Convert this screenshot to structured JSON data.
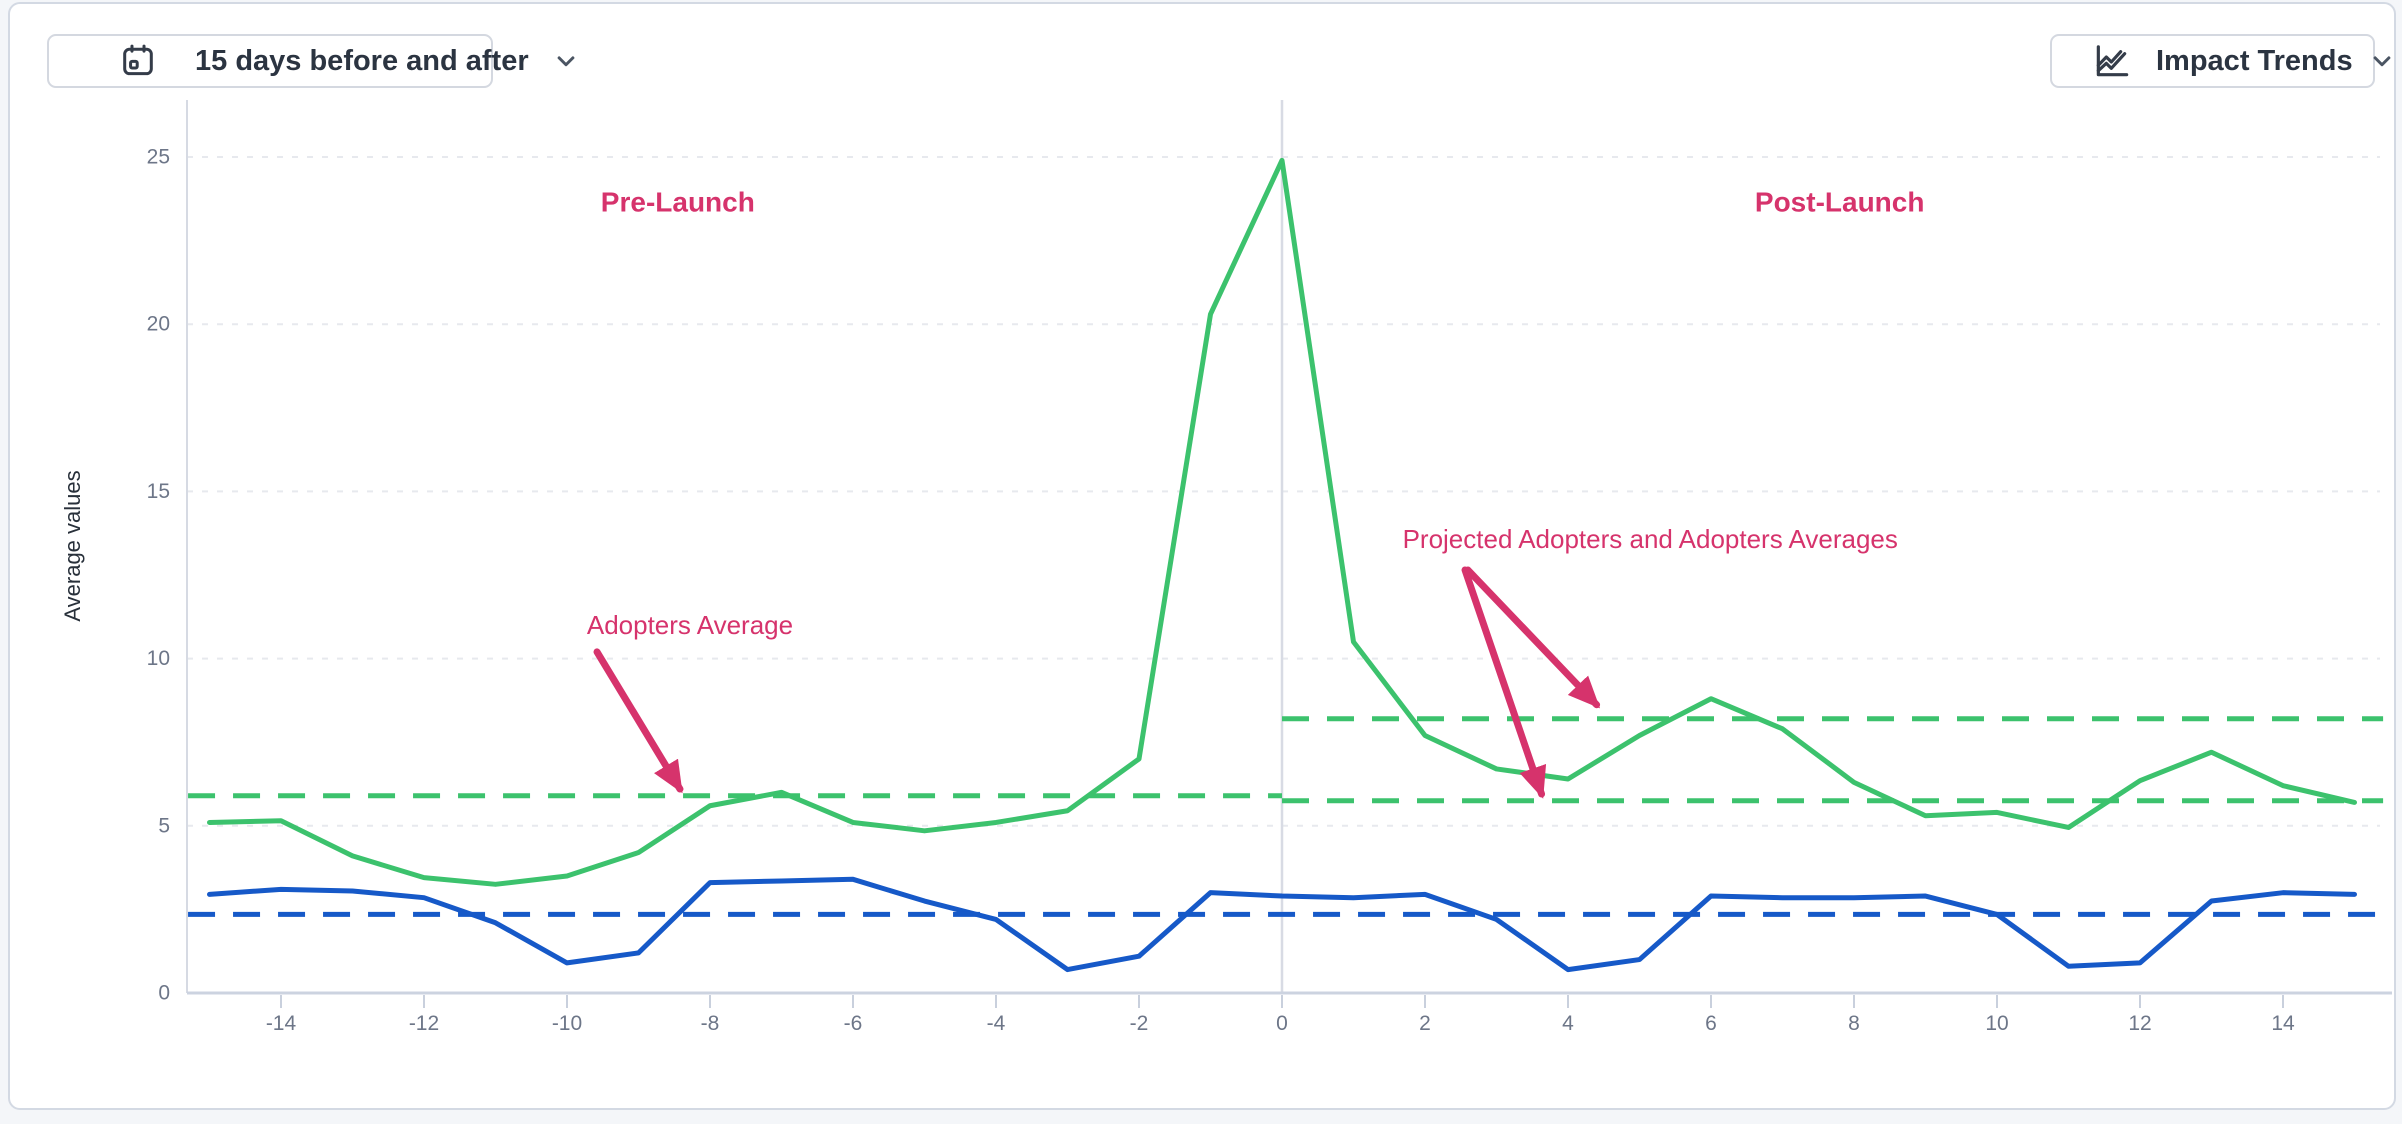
{
  "header": {
    "date_range_button": {
      "label": "15 days before and after",
      "icon": "calendar-icon"
    },
    "metric_button": {
      "label": "Impact Trends",
      "icon": "trend-chart-icon"
    }
  },
  "chart_data": {
    "type": "line",
    "ylabel": "Average values",
    "xlim": [
      -15,
      15
    ],
    "ylim": [
      0,
      25.5
    ],
    "grid": "horizontal-dashed",
    "launch_line_x": 0,
    "x_ticks": [
      -14,
      -12,
      -10,
      -8,
      -6,
      -4,
      -2,
      0,
      2,
      4,
      6,
      8,
      10,
      12,
      14
    ],
    "y_ticks": [
      0,
      5,
      10,
      15,
      20,
      25
    ],
    "x": [
      -15,
      -14,
      -13,
      -12,
      -11,
      -10,
      -9,
      -8,
      -7,
      -6,
      -5,
      -4,
      -3,
      -2,
      -1,
      0,
      1,
      2,
      3,
      4,
      5,
      6,
      7,
      8,
      9,
      10,
      11,
      12,
      13,
      14,
      15
    ],
    "series": [
      {
        "name": "adopters",
        "style": "solid",
        "color": "#3cc26d",
        "values": [
          5.1,
          5.15,
          4.1,
          3.45,
          3.25,
          3.5,
          4.2,
          5.6,
          6.0,
          5.1,
          4.85,
          5.1,
          5.45,
          7.0,
          20.3,
          24.9,
          10.5,
          7.7,
          6.7,
          6.4,
          7.7,
          8.8,
          7.9,
          6.3,
          5.3,
          5.4,
          4.95,
          6.35,
          7.2,
          6.2,
          5.7
        ]
      },
      {
        "name": "non-adopters",
        "style": "solid",
        "color": "#1659c8",
        "values": [
          2.95,
          3.1,
          3.05,
          2.85,
          2.1,
          0.9,
          1.2,
          3.3,
          3.35,
          3.4,
          2.75,
          2.2,
          0.7,
          1.1,
          3.0,
          2.9,
          2.85,
          2.95,
          2.2,
          0.7,
          1.0,
          2.9,
          2.85,
          2.85,
          2.9,
          2.35,
          0.8,
          0.9,
          2.75,
          3.0,
          2.95
        ]
      },
      {
        "name": "adopters-average-pre",
        "style": "dashed",
        "color": "#3cc26d",
        "value": 5.9,
        "x_range": [
          -15.3,
          0
        ]
      },
      {
        "name": "adopters-average-post",
        "style": "dashed",
        "color": "#3cc26d",
        "value": 5.75,
        "x_range": [
          0,
          15.4
        ]
      },
      {
        "name": "projected-adopters-average",
        "style": "dashed",
        "color": "#3cc26d",
        "value": 8.2,
        "x_range": [
          0,
          15.4
        ]
      },
      {
        "name": "non-adopters-average",
        "style": "dashed",
        "color": "#1659c8",
        "value": 2.35,
        "x_range": [
          -15.3,
          15.4
        ]
      }
    ],
    "annotation_color": "#d6336c",
    "annotations": {
      "labels": [
        {
          "id": "pre-launch",
          "text": "Pre-Launch",
          "x": -8.45,
          "y": 23.65,
          "bold": true
        },
        {
          "id": "post-launch",
          "text": "Post-Launch",
          "x": 7.8,
          "y": 23.65,
          "bold": true
        },
        {
          "id": "adopters-average",
          "text": "Adopters Average",
          "x": -8.28,
          "y": 11.0,
          "bold": false
        },
        {
          "id": "projected-and-adopters-averages",
          "text": "Projected Adopters and Adopters Averages",
          "x": 5.15,
          "y": 13.58,
          "bold": false
        }
      ],
      "arrows": [
        {
          "from": [
            -9.58,
            10.2
          ],
          "to": [
            -8.42,
            6.1
          ]
        },
        {
          "from": [
            2.6,
            12.65
          ],
          "to": [
            4.4,
            8.62
          ]
        },
        {
          "from": [
            2.56,
            12.65
          ],
          "to": [
            3.63,
            5.95
          ]
        }
      ]
    }
  }
}
